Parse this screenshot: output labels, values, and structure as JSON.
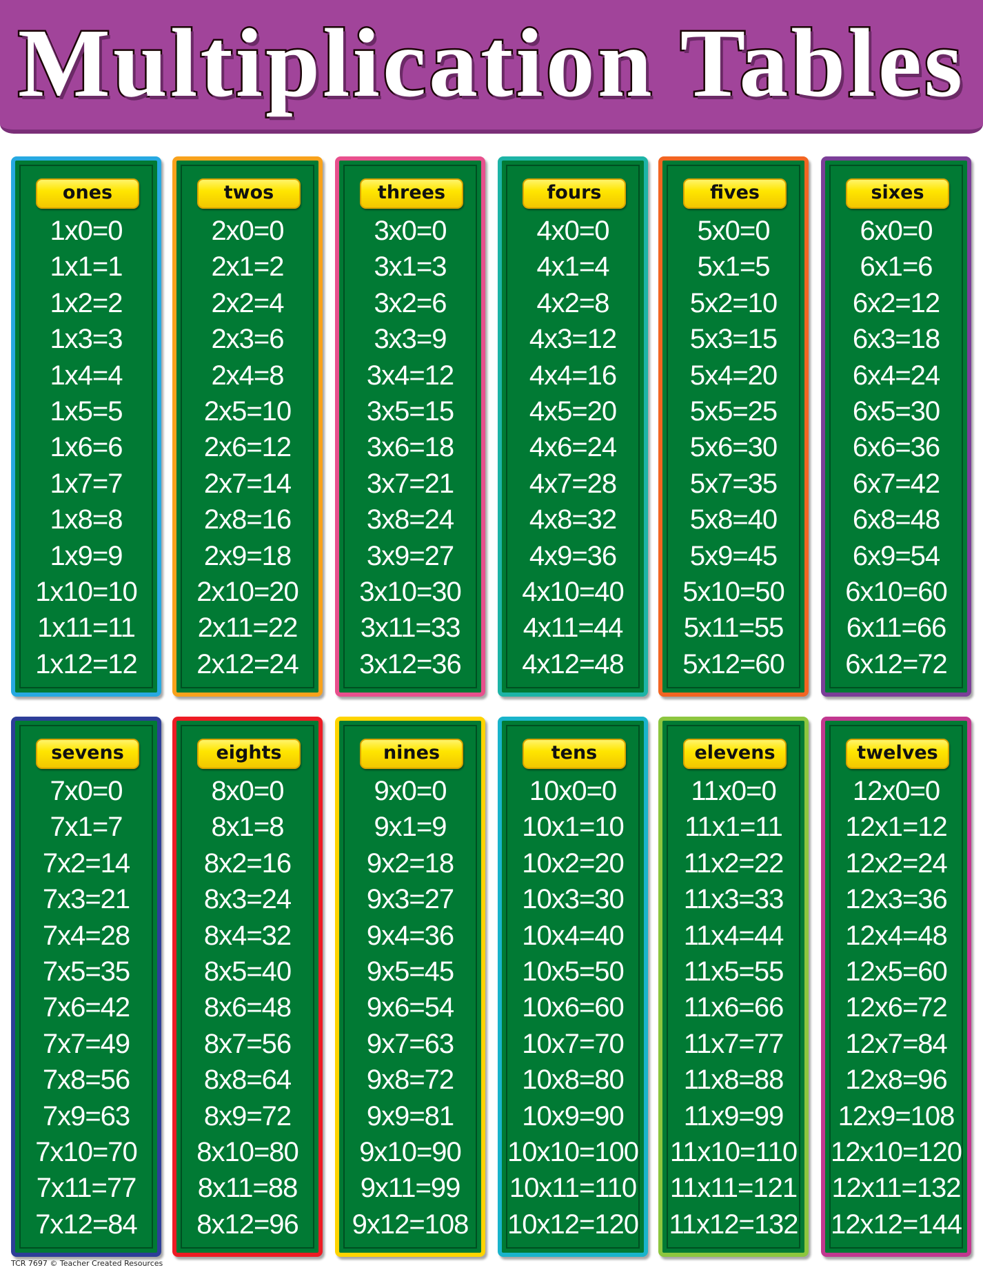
{
  "title": "Multiplication Tables",
  "footer": "TCR 7697  © Teacher Created Resources",
  "colors": {
    "board": "#017a34",
    "banner": "#a1449a",
    "label": "#ffe600"
  },
  "tables": [
    {
      "label": "ones",
      "border": "#27a9e1",
      "equations": [
        "1x0=0",
        "1x1=1",
        "1x2=2",
        "1x3=3",
        "1x4=4",
        "1x5=5",
        "1x6=6",
        "1x7=7",
        "1x8=8",
        "1x9=9",
        "1x10=10",
        "1x11=11",
        "1x12=12"
      ]
    },
    {
      "label": "twos",
      "border": "#f8a21c",
      "equations": [
        "2x0=0",
        "2x1=2",
        "2x2=4",
        "2x3=6",
        "2x4=8",
        "2x5=10",
        "2x6=12",
        "2x7=14",
        "2x8=16",
        "2x9=18",
        "2x10=20",
        "2x11=22",
        "2x12=24"
      ]
    },
    {
      "label": "threes",
      "border": "#e8508d",
      "equations": [
        "3x0=0",
        "3x1=3",
        "3x2=6",
        "3x3=9",
        "3x4=12",
        "3x5=15",
        "3x6=18",
        "3x7=21",
        "3x8=24",
        "3x9=27",
        "3x10=30",
        "3x11=33",
        "3x12=36"
      ]
    },
    {
      "label": "fours",
      "border": "#1db4a6",
      "equations": [
        "4x0=0",
        "4x1=4",
        "4x2=8",
        "4x3=12",
        "4x4=16",
        "4x5=20",
        "4x6=24",
        "4x7=28",
        "4x8=32",
        "4x9=36",
        "4x10=40",
        "4x11=44",
        "4x12=48"
      ]
    },
    {
      "label": "fives",
      "border": "#f26522",
      "equations": [
        "5x0=0",
        "5x1=5",
        "5x2=10",
        "5x3=15",
        "5x4=20",
        "5x5=25",
        "5x6=30",
        "5x7=35",
        "5x8=40",
        "5x9=45",
        "5x10=50",
        "5x11=55",
        "5x12=60"
      ]
    },
    {
      "label": "sixes",
      "border": "#7b3f98",
      "equations": [
        "6x0=0",
        "6x1=6",
        "6x2=12",
        "6x3=18",
        "6x4=24",
        "6x5=30",
        "6x6=36",
        "6x7=42",
        "6x8=48",
        "6x9=54",
        "6x10=60",
        "6x11=66",
        "6x12=72"
      ]
    },
    {
      "label": "sevens",
      "border": "#2d3e98",
      "equations": [
        "7x0=0",
        "7x1=7",
        "7x2=14",
        "7x3=21",
        "7x4=28",
        "7x5=35",
        "7x6=42",
        "7x7=49",
        "7x8=56",
        "7x9=63",
        "7x10=70",
        "7x11=77",
        "7x12=84"
      ]
    },
    {
      "label": "eights",
      "border": "#ed1c24",
      "equations": [
        "8x0=0",
        "8x1=8",
        "8x2=16",
        "8x3=24",
        "8x4=32",
        "8x5=40",
        "8x6=48",
        "8x7=56",
        "8x8=64",
        "8x9=72",
        "8x10=80",
        "8x11=88",
        "8x12=96"
      ]
    },
    {
      "label": "nines",
      "border": "#ffd400",
      "equations": [
        "9x0=0",
        "9x1=9",
        "9x2=18",
        "9x3=27",
        "9x4=36",
        "9x5=45",
        "9x6=54",
        "9x7=63",
        "9x8=72",
        "9x9=81",
        "9x10=90",
        "9x11=99",
        "9x12=108"
      ]
    },
    {
      "label": "tens",
      "border": "#19b4cb",
      "equations": [
        "10x0=0",
        "10x1=10",
        "10x2=20",
        "10x3=30",
        "10x4=40",
        "10x5=50",
        "10x6=60",
        "10x7=70",
        "10x8=80",
        "10x9=90",
        "10x10=100",
        "10x11=110",
        "10x12=120"
      ]
    },
    {
      "label": "elevens",
      "border": "#8dc63f",
      "equations": [
        "11x0=0",
        "11x1=11",
        "11x2=22",
        "11x3=33",
        "11x4=44",
        "11x5=55",
        "11x6=66",
        "11x7=77",
        "11x8=88",
        "11x9=99",
        "11x10=110",
        "11x11=121",
        "11x12=132"
      ]
    },
    {
      "label": "twelves",
      "border": "#c1388f",
      "equations": [
        "12x0=0",
        "12x1=12",
        "12x2=24",
        "12x3=36",
        "12x4=48",
        "12x5=60",
        "12x6=72",
        "12x7=84",
        "12x8=96",
        "12x9=108",
        "12x10=120",
        "12x11=132",
        "12x12=144"
      ]
    }
  ]
}
